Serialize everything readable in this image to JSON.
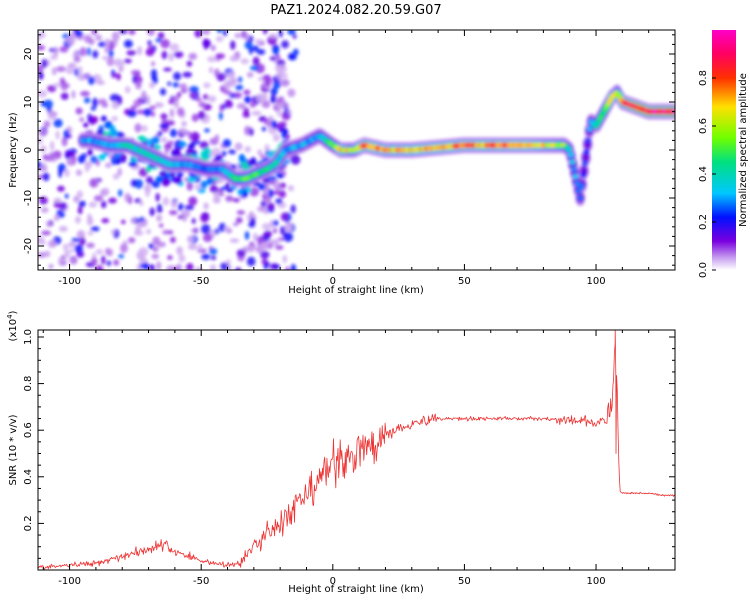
{
  "figure_title": "PAZ1.2024.082.20.59.G07",
  "chart_data": [
    {
      "type": "heatmap",
      "xlabel": "Height of straight line (km)",
      "ylabel": "Frequency (Hz)",
      "xlim": [
        -112,
        130
      ],
      "ylim": [
        -25,
        25
      ],
      "x_ticks": [
        -100,
        -50,
        0,
        50,
        100
      ],
      "y_ticks": [
        -20,
        -10,
        0,
        10,
        20
      ],
      "colorbar": {
        "label": "Normalized spectral amplitude",
        "range": [
          0,
          1
        ],
        "ticks": [
          0.0,
          0.2,
          0.4,
          0.6,
          0.8
        ],
        "colormap": [
          "#ffffff",
          "#c8a0f0",
          "#7a00e0",
          "#0010ff",
          "#00c8ff",
          "#00e080",
          "#70ff00",
          "#ffe000",
          "#ff3000",
          "#ff0060",
          "#ff00c8"
        ]
      },
      "ridge": {
        "x": [
          -92,
          -85,
          -78,
          -70,
          -62,
          -55,
          -48,
          -42,
          -37,
          -33,
          -29,
          -25,
          -22,
          -18,
          -12,
          -5,
          0,
          3,
          8,
          12,
          20,
          30,
          50,
          70,
          88,
          90,
          92,
          94,
          96,
          98,
          100,
          103,
          106,
          108,
          110,
          115,
          120,
          130
        ],
        "y": [
          2,
          1,
          1,
          -1,
          -3,
          -3,
          -4,
          -4,
          -6,
          -6,
          -5,
          -4,
          -3,
          0,
          1,
          3,
          1,
          0,
          0,
          1,
          0,
          0,
          1,
          1,
          1,
          0,
          -5,
          -10,
          -2,
          6,
          5,
          8,
          11,
          12,
          10,
          9,
          8,
          8
        ],
        "amp": [
          0.3,
          0.3,
          0.4,
          0.4,
          0.35,
          0.3,
          0.25,
          0.3,
          0.45,
          0.5,
          0.5,
          0.45,
          0.4,
          0.3,
          0.3,
          0.3,
          0.5,
          0.7,
          0.6,
          0.8,
          0.7,
          0.7,
          0.75,
          0.75,
          0.6,
          0.35,
          0.3,
          0.25,
          0.25,
          0.3,
          0.4,
          0.5,
          0.7,
          0.6,
          0.75,
          0.9,
          0.9,
          0.9
        ]
      }
    },
    {
      "type": "line",
      "xlabel": "Height of straight line (km)",
      "ylabel": "SNR (10 * v/v)",
      "y_multiplier": "(x10^4)",
      "xlim": [
        -112,
        130
      ],
      "ylim": [
        0,
        1.03
      ],
      "x_ticks": [
        -100,
        -50,
        0,
        50,
        100
      ],
      "y_ticks": [
        0.2,
        0.4,
        0.6,
        0.8,
        1.0
      ],
      "color": "#ee3333",
      "series": [
        {
          "x": [
            -112,
            -100,
            -90,
            -80,
            -70,
            -65,
            -60,
            -50,
            -40,
            -35,
            -30,
            -25,
            -20,
            -15,
            -10,
            -5,
            0,
            5,
            10,
            15,
            20,
            25,
            30,
            35,
            40,
            50,
            60,
            70,
            80,
            90,
            95,
            100,
            104,
            106,
            107,
            108,
            109,
            110,
            115,
            120,
            125,
            130
          ],
          "y": [
            0.01,
            0.02,
            0.03,
            0.06,
            0.09,
            0.11,
            0.08,
            0.04,
            0.02,
            0.03,
            0.1,
            0.16,
            0.2,
            0.25,
            0.3,
            0.38,
            0.45,
            0.48,
            0.5,
            0.54,
            0.58,
            0.61,
            0.63,
            0.64,
            0.65,
            0.65,
            0.65,
            0.65,
            0.65,
            0.64,
            0.64,
            0.63,
            0.64,
            0.7,
            0.95,
            0.75,
            0.34,
            0.33,
            0.33,
            0.33,
            0.32,
            0.32
          ]
        }
      ]
    }
  ]
}
